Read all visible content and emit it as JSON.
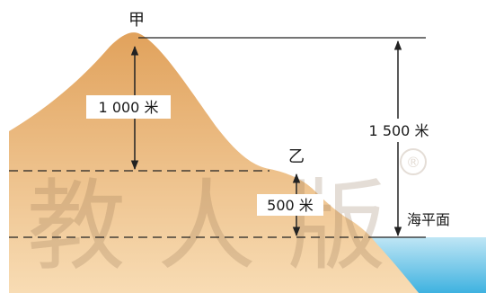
{
  "points": {
    "jia": "甲",
    "yi": "乙"
  },
  "measurements": {
    "relative_jia_yi": "1 000 米",
    "relative_yi_sea": "500 米",
    "absolute_jia": "1 500 米"
  },
  "labels": {
    "sea_level": "海平面"
  },
  "watermark": {
    "text": "教 人 版",
    "mark": "®"
  },
  "colors": {
    "land_top": "#e1a25c",
    "land_bottom": "#f8dcb4",
    "sea_top": "#bfe6f5",
    "sea_bottom": "#3fb2e0",
    "line": "#222222"
  }
}
